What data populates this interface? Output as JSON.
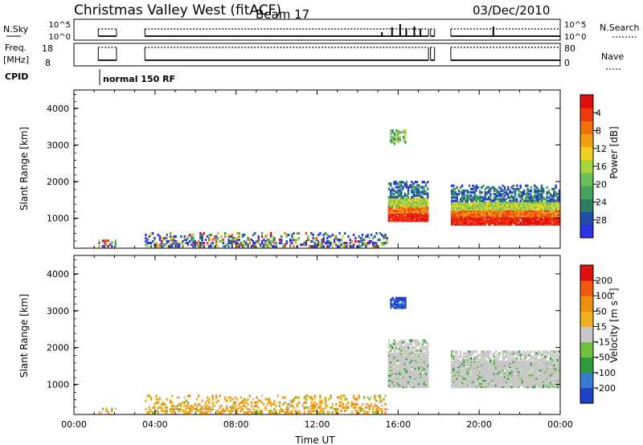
{
  "header": {
    "title": "Christmas Valley West (fitACF)",
    "beam": "Beam 17",
    "date": "03/Dec/2010"
  },
  "top_panels": {
    "nsky_label": "N.Sky",
    "nsky_ticks": [
      "10^5",
      "10^0"
    ],
    "nsearch_ticks": [
      "10^5",
      "10^0"
    ],
    "nsearch_label": "N.Search",
    "freq_label": "Freq.",
    "freq_unit": "[MHz]",
    "freq_ticks": [
      "18",
      "8"
    ],
    "nave_ticks": [
      "80",
      "0"
    ],
    "nave_label": "Nave",
    "cpid_label": "CPID",
    "cpid_value": "normal 150 RF",
    "on_segments_hours": [
      [
        1.2,
        2.1
      ],
      [
        3.5,
        17.5
      ],
      [
        17.6,
        17.8
      ],
      [
        18.6,
        24.0
      ]
    ],
    "gap_hours": [
      [
        0,
        1.2
      ],
      [
        2.1,
        3.5
      ],
      [
        17.8,
        18.6
      ]
    ]
  },
  "chart_data": [
    {
      "type": "heatmap",
      "title": "",
      "quantity": "Power",
      "xlabel": "",
      "ylabel": "Slant Range [km]",
      "x_range_hours": [
        0,
        24
      ],
      "ylim": [
        180,
        4500
      ],
      "yticks": [
        "1000",
        "2000",
        "3000",
        "4000"
      ],
      "colorbar": {
        "label": "Power [dB]",
        "ticks": [
          "4",
          "8",
          "12",
          "16",
          "20",
          "24",
          "28"
        ],
        "colors": [
          "#2e33e8",
          "#1e4ea8",
          "#2e7d64",
          "#44a35c",
          "#6ac05a",
          "#a8d43e",
          "#f0d020",
          "#f0a010",
          "#f07010",
          "#f03a10",
          "#e01010"
        ]
      },
      "regions": [
        {
          "x": [
            1.2,
            2.1
          ],
          "y": [
            200,
            400
          ],
          "level": "low"
        },
        {
          "x": [
            3.5,
            15.5
          ],
          "y": [
            200,
            600
          ],
          "level": "low-medium"
        },
        {
          "x": [
            15.5,
            17.5
          ],
          "y": [
            900,
            2000
          ],
          "level": "high"
        },
        {
          "x": [
            15.6,
            16.4
          ],
          "y": [
            3000,
            3400
          ],
          "level": "medium"
        },
        {
          "x": [
            18.6,
            24.0
          ],
          "y": [
            800,
            1900
          ],
          "level": "high"
        }
      ]
    },
    {
      "type": "heatmap",
      "title": "",
      "quantity": "Velocity",
      "xlabel": "Time UT",
      "ylabel": "Slant Range [km]",
      "x_range_hours": [
        0,
        24
      ],
      "xticks": [
        "00:00",
        "04:00",
        "08:00",
        "12:00",
        "16:00",
        "20:00",
        "00:00"
      ],
      "ylim": [
        180,
        4500
      ],
      "yticks": [
        "1000",
        "2000",
        "3000",
        "4000"
      ],
      "colorbar": {
        "label": "Velocity [m s⁻¹]",
        "ticks": [
          "200",
          "100",
          "50",
          "15",
          "-15",
          "-50",
          "-100",
          "-200"
        ],
        "colors": [
          "#2040c8",
          "#3a7ad0",
          "#2e9a40",
          "#70c040",
          "#c8c8c8",
          "#f0b020",
          "#f09010",
          "#f05a10",
          "#e01010"
        ]
      },
      "regions": [
        {
          "x": [
            1.2,
            2.1
          ],
          "y": [
            200,
            350
          ],
          "level": "ground"
        },
        {
          "x": [
            3.5,
            15.5
          ],
          "y": [
            200,
            700
          ],
          "level": "ground"
        },
        {
          "x": [
            15.5,
            17.5
          ],
          "y": [
            900,
            2200
          ],
          "level": "gray"
        },
        {
          "x": [
            15.6,
            16.4
          ],
          "y": [
            3050,
            3350
          ],
          "level": "blue"
        },
        {
          "x": [
            18.6,
            24.0
          ],
          "y": [
            900,
            1900
          ],
          "level": "gray"
        }
      ]
    }
  ]
}
